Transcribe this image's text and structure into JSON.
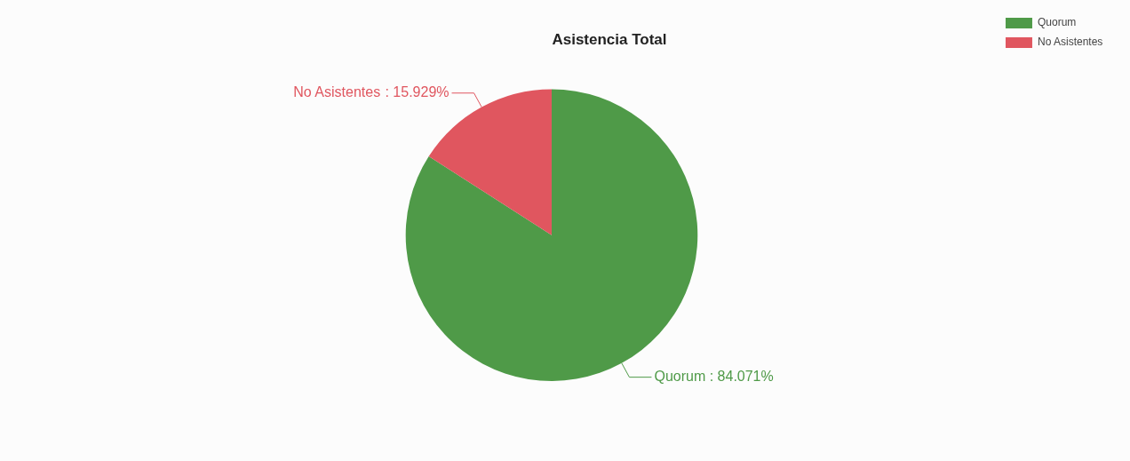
{
  "chart_data": {
    "type": "pie",
    "title": "Asistencia Total",
    "categories": [
      "Quorum",
      "No Asistentes"
    ],
    "values": [
      84.071,
      15.929
    ],
    "colors": [
      "#4f9a48",
      "#e0565f"
    ],
    "value_labels": [
      ": 84.071%",
      ": 15.929%"
    ],
    "legend": "top right"
  }
}
